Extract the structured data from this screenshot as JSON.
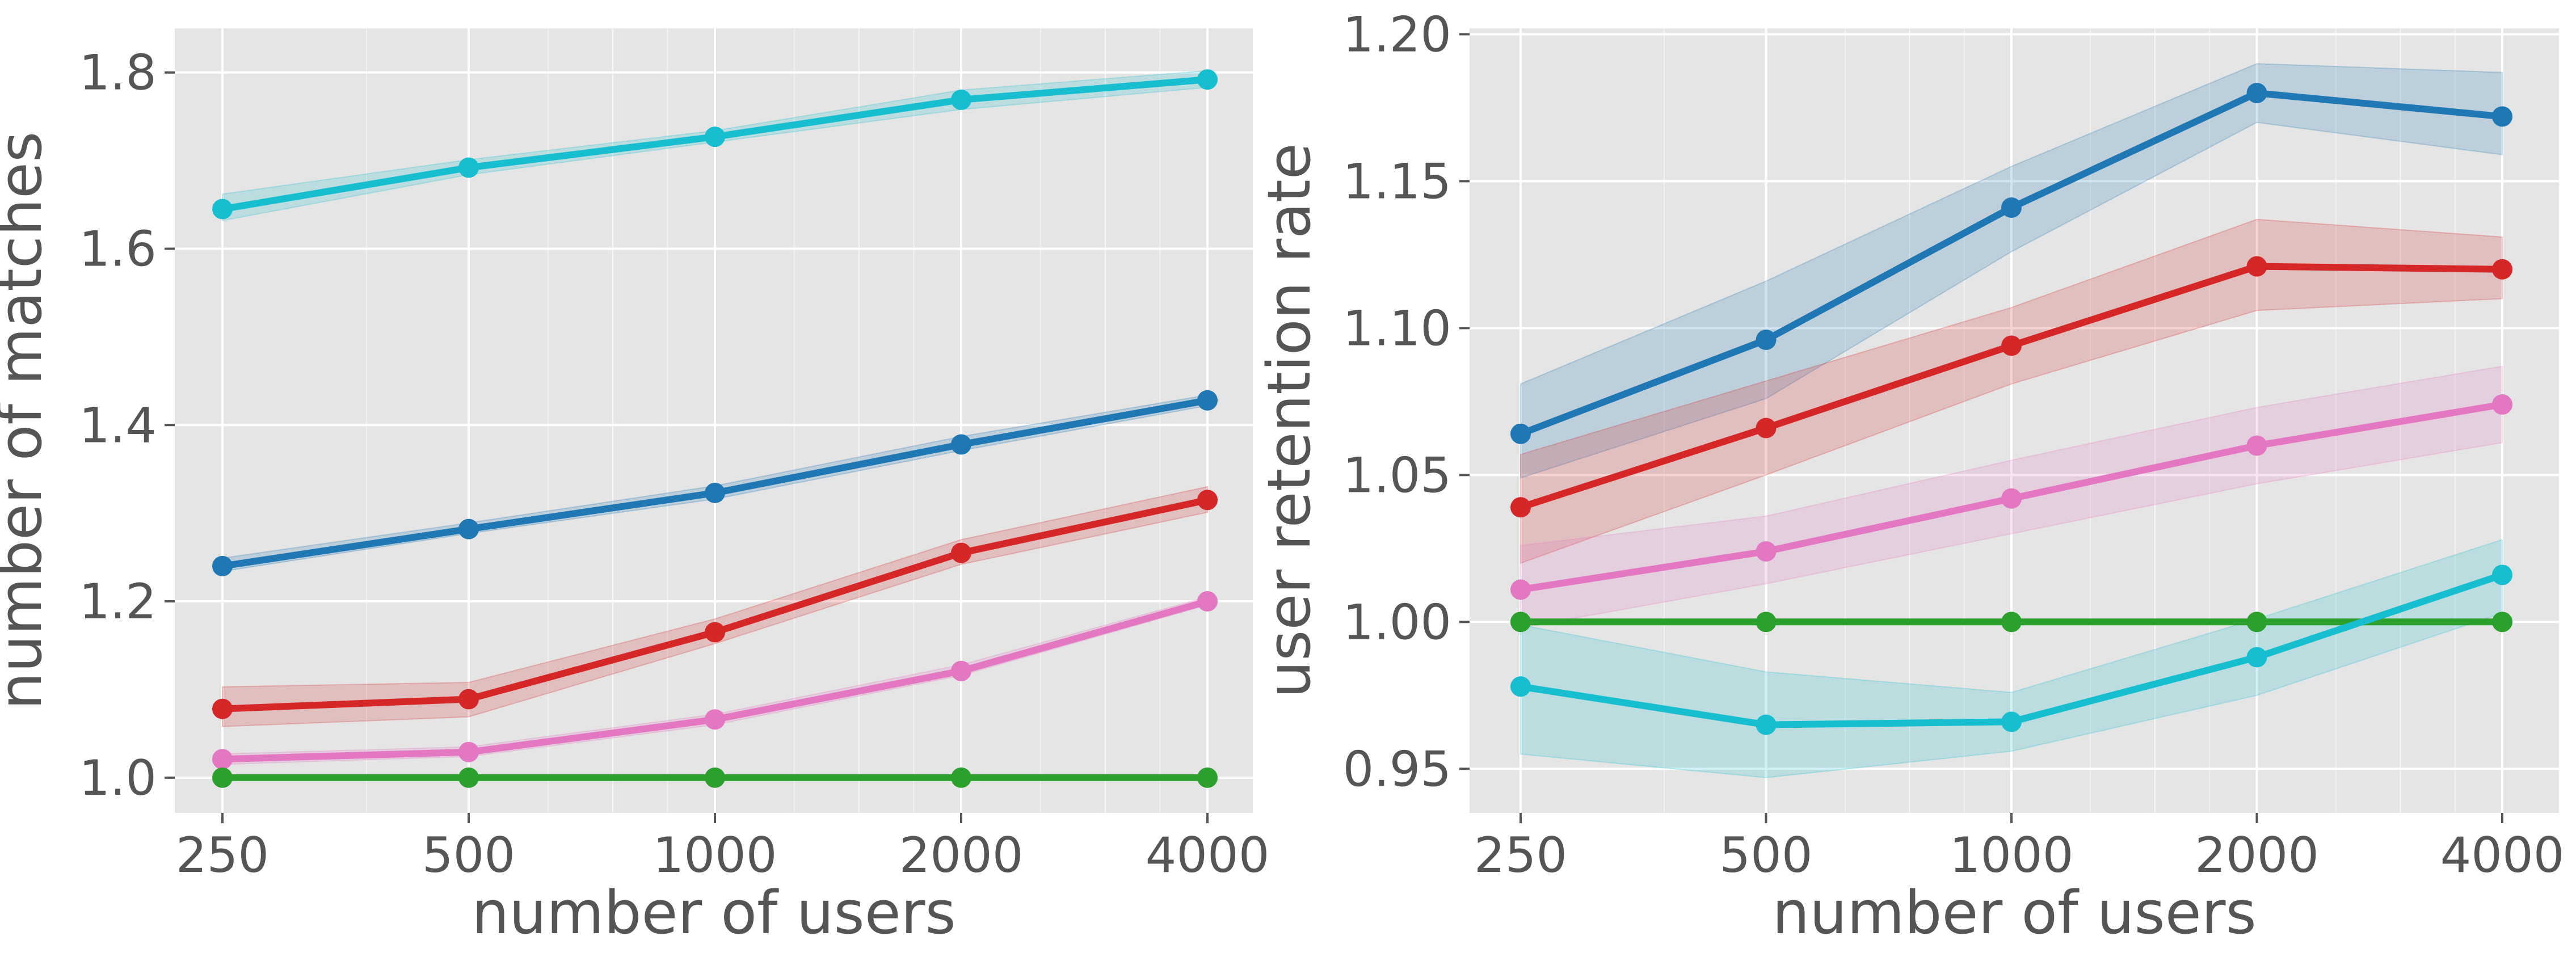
{
  "chart_data": [
    {
      "type": "line",
      "xscale": "log2",
      "x": [
        250,
        500,
        1000,
        2000,
        4000
      ],
      "xticks": [
        "250",
        "500",
        "1000",
        "2000",
        "4000"
      ],
      "xlabel": "number of users",
      "ylabel": "number of matches",
      "ylim": [
        0.96,
        1.85
      ],
      "yticks": [
        1.0,
        1.2,
        1.4,
        1.6,
        1.8
      ],
      "ytick_labels": [
        "1.0",
        "1.2",
        "1.4",
        "1.6",
        "1.8"
      ],
      "grid": true,
      "series": [
        {
          "color": "#17becf",
          "values": [
            1.645,
            1.692,
            1.727,
            1.769,
            1.792
          ],
          "lower": [
            1.632,
            1.684,
            1.721,
            1.758,
            1.783
          ],
          "upper": [
            1.662,
            1.701,
            1.734,
            1.78,
            1.802
          ]
        },
        {
          "color": "#1f77b4",
          "values": [
            1.24,
            1.282,
            1.323,
            1.378,
            1.428
          ],
          "lower": [
            1.234,
            1.277,
            1.316,
            1.371,
            1.422
          ],
          "upper": [
            1.249,
            1.289,
            1.331,
            1.387,
            1.434
          ]
        },
        {
          "color": "#d62728",
          "values": [
            1.078,
            1.089,
            1.165,
            1.255,
            1.315
          ],
          "lower": [
            1.058,
            1.069,
            1.152,
            1.242,
            1.301
          ],
          "upper": [
            1.103,
            1.108,
            1.18,
            1.27,
            1.33
          ]
        },
        {
          "color": "#e377c2",
          "values": [
            1.021,
            1.029,
            1.066,
            1.121,
            1.2
          ],
          "lower": [
            1.015,
            1.024,
            1.06,
            1.116,
            1.196
          ],
          "upper": [
            1.027,
            1.035,
            1.072,
            1.128,
            1.205
          ]
        },
        {
          "color": "#2ca02c",
          "values": [
            1.0,
            1.0,
            1.0,
            1.0,
            1.0
          ],
          "lower": [
            1.0,
            1.0,
            1.0,
            1.0,
            1.0
          ],
          "upper": [
            1.0,
            1.0,
            1.0,
            1.0,
            1.0
          ]
        }
      ]
    },
    {
      "type": "line",
      "xscale": "log2",
      "x": [
        250,
        500,
        1000,
        2000,
        4000
      ],
      "xticks": [
        "250",
        "500",
        "1000",
        "2000",
        "4000"
      ],
      "xlabel": "number of users",
      "ylabel": "user retention rate",
      "ylim": [
        0.935,
        1.202
      ],
      "yticks": [
        0.95,
        1.0,
        1.05,
        1.1,
        1.15,
        1.2
      ],
      "ytick_labels": [
        "0.95",
        "1.00",
        "1.05",
        "1.10",
        "1.15",
        "1.20"
      ],
      "grid": true,
      "series": [
        {
          "color": "#1f77b4",
          "values": [
            1.064,
            1.096,
            1.141,
            1.18,
            1.172
          ],
          "lower": [
            1.049,
            1.076,
            1.126,
            1.17,
            1.159
          ],
          "upper": [
            1.081,
            1.116,
            1.155,
            1.19,
            1.187
          ]
        },
        {
          "color": "#d62728",
          "values": [
            1.039,
            1.066,
            1.094,
            1.121,
            1.12
          ],
          "lower": [
            1.02,
            1.05,
            1.081,
            1.106,
            1.11
          ],
          "upper": [
            1.057,
            1.082,
            1.107,
            1.137,
            1.131
          ]
        },
        {
          "color": "#e377c2",
          "values": [
            1.011,
            1.024,
            1.042,
            1.06,
            1.074
          ],
          "lower": [
            0.998,
            1.013,
            1.03,
            1.047,
            1.061
          ],
          "upper": [
            1.026,
            1.036,
            1.055,
            1.073,
            1.087
          ]
        },
        {
          "color": "#2ca02c",
          "values": [
            1.0,
            1.0,
            1.0,
            1.0,
            1.0
          ],
          "lower": [
            1.0,
            1.0,
            1.0,
            1.0,
            1.0
          ],
          "upper": [
            1.0,
            1.0,
            1.0,
            1.0,
            1.0
          ]
        },
        {
          "color": "#17becf",
          "values": [
            0.978,
            0.965,
            0.966,
            0.988,
            1.016
          ],
          "lower": [
            0.955,
            0.947,
            0.956,
            0.975,
            1.003
          ],
          "upper": [
            0.999,
            0.983,
            0.976,
            1.001,
            1.028
          ]
        }
      ]
    }
  ]
}
